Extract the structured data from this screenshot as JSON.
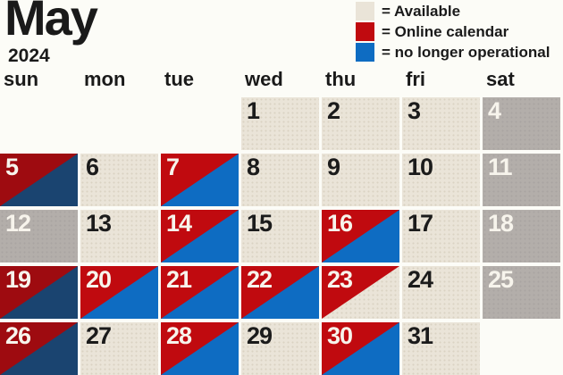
{
  "title": {
    "month": "May",
    "year": "2024"
  },
  "legend": {
    "items": [
      {
        "name": "available",
        "label": "= Available",
        "swatch_color": "#eae4d8"
      },
      {
        "name": "online-calendar",
        "label": "= Online calendar",
        "swatch_color": "#c00a0f"
      },
      {
        "name": "no-longer-operational",
        "label": "= no longer operational",
        "swatch_color": "#0e6cc2"
      }
    ]
  },
  "weekdays": [
    "sun",
    "mon",
    "tue",
    "wed",
    "thu",
    "fri",
    "sat"
  ],
  "palette": {
    "beige": "#eae4d8",
    "gray": "#b3aeaa",
    "red": "#c00a0f",
    "blue": "#0e6cc2",
    "dark_red": "#9e0b10",
    "navy": "#1a4470"
  },
  "days": [
    {
      "day": "1",
      "row": 0,
      "col": 3,
      "fill": {
        "type": "solid",
        "color": "beige"
      },
      "text": "dark"
    },
    {
      "day": "2",
      "row": 0,
      "col": 4,
      "fill": {
        "type": "solid",
        "color": "beige"
      },
      "text": "dark"
    },
    {
      "day": "3",
      "row": 0,
      "col": 5,
      "fill": {
        "type": "solid",
        "color": "beige"
      },
      "text": "dark"
    },
    {
      "day": "4",
      "row": 0,
      "col": 6,
      "fill": {
        "type": "solid",
        "color": "gray"
      },
      "text": "light"
    },
    {
      "day": "5",
      "row": 1,
      "col": 0,
      "fill": {
        "type": "split",
        "upper": "dark_red",
        "lower": "navy"
      },
      "text": "light"
    },
    {
      "day": "6",
      "row": 1,
      "col": 1,
      "fill": {
        "type": "solid",
        "color": "beige"
      },
      "text": "dark"
    },
    {
      "day": "7",
      "row": 1,
      "col": 2,
      "fill": {
        "type": "split",
        "upper": "red",
        "lower": "blue"
      },
      "text": "light"
    },
    {
      "day": "8",
      "row": 1,
      "col": 3,
      "fill": {
        "type": "solid",
        "color": "beige"
      },
      "text": "dark"
    },
    {
      "day": "9",
      "row": 1,
      "col": 4,
      "fill": {
        "type": "solid",
        "color": "beige"
      },
      "text": "dark"
    },
    {
      "day": "10",
      "row": 1,
      "col": 5,
      "fill": {
        "type": "solid",
        "color": "beige"
      },
      "text": "dark"
    },
    {
      "day": "11",
      "row": 1,
      "col": 6,
      "fill": {
        "type": "solid",
        "color": "gray"
      },
      "text": "light"
    },
    {
      "day": "12",
      "row": 2,
      "col": 0,
      "fill": {
        "type": "solid",
        "color": "gray"
      },
      "text": "light"
    },
    {
      "day": "13",
      "row": 2,
      "col": 1,
      "fill": {
        "type": "solid",
        "color": "beige"
      },
      "text": "dark"
    },
    {
      "day": "14",
      "row": 2,
      "col": 2,
      "fill": {
        "type": "split",
        "upper": "red",
        "lower": "blue"
      },
      "text": "light"
    },
    {
      "day": "15",
      "row": 2,
      "col": 3,
      "fill": {
        "type": "solid",
        "color": "beige"
      },
      "text": "dark"
    },
    {
      "day": "16",
      "row": 2,
      "col": 4,
      "fill": {
        "type": "split",
        "upper": "red",
        "lower": "blue"
      },
      "text": "light"
    },
    {
      "day": "17",
      "row": 2,
      "col": 5,
      "fill": {
        "type": "solid",
        "color": "beige"
      },
      "text": "dark"
    },
    {
      "day": "18",
      "row": 2,
      "col": 6,
      "fill": {
        "type": "solid",
        "color": "gray"
      },
      "text": "light"
    },
    {
      "day": "19",
      "row": 3,
      "col": 0,
      "fill": {
        "type": "split",
        "upper": "dark_red",
        "lower": "navy"
      },
      "text": "light"
    },
    {
      "day": "20",
      "row": 3,
      "col": 1,
      "fill": {
        "type": "split",
        "upper": "red",
        "lower": "blue"
      },
      "text": "light"
    },
    {
      "day": "21",
      "row": 3,
      "col": 2,
      "fill": {
        "type": "split",
        "upper": "red",
        "lower": "blue"
      },
      "text": "light"
    },
    {
      "day": "22",
      "row": 3,
      "col": 3,
      "fill": {
        "type": "split",
        "upper": "red",
        "lower": "blue"
      },
      "text": "light"
    },
    {
      "day": "23",
      "row": 3,
      "col": 4,
      "fill": {
        "type": "split",
        "upper": "red",
        "lower": "beige"
      },
      "text": "light"
    },
    {
      "day": "24",
      "row": 3,
      "col": 5,
      "fill": {
        "type": "solid",
        "color": "beige"
      },
      "text": "dark"
    },
    {
      "day": "25",
      "row": 3,
      "col": 6,
      "fill": {
        "type": "solid",
        "color": "gray"
      },
      "text": "light"
    },
    {
      "day": "26",
      "row": 4,
      "col": 0,
      "fill": {
        "type": "split",
        "upper": "dark_red",
        "lower": "navy"
      },
      "text": "light"
    },
    {
      "day": "27",
      "row": 4,
      "col": 1,
      "fill": {
        "type": "solid",
        "color": "beige"
      },
      "text": "dark"
    },
    {
      "day": "28",
      "row": 4,
      "col": 2,
      "fill": {
        "type": "split",
        "upper": "red",
        "lower": "blue"
      },
      "text": "light"
    },
    {
      "day": "29",
      "row": 4,
      "col": 3,
      "fill": {
        "type": "solid",
        "color": "beige"
      },
      "text": "dark"
    },
    {
      "day": "30",
      "row": 4,
      "col": 4,
      "fill": {
        "type": "split",
        "upper": "red",
        "lower": "blue"
      },
      "text": "light"
    },
    {
      "day": "31",
      "row": 4,
      "col": 5,
      "fill": {
        "type": "solid",
        "color": "beige"
      },
      "text": "dark"
    }
  ]
}
